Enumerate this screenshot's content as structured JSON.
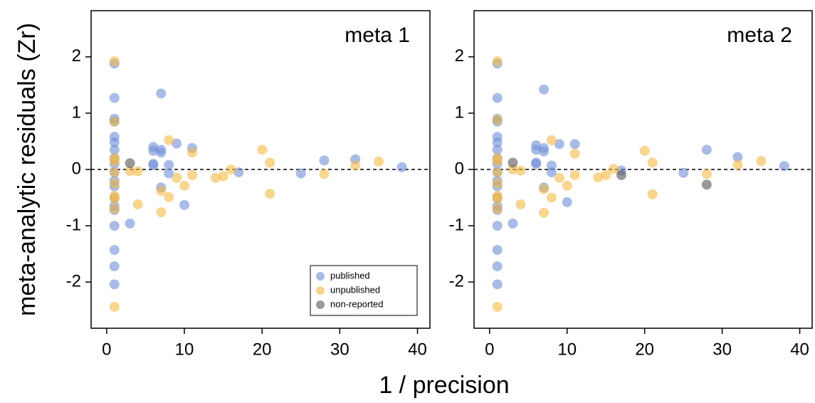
{
  "chart_data": [
    {
      "type": "scatter",
      "title": "meta 1",
      "xlabel": "1 / precision",
      "ylabel": "meta-analytic residuals (Zr)",
      "xlim": [
        -2,
        41.6
      ],
      "ylim": [
        -2.82,
        2.82
      ],
      "xticks": [
        0,
        10,
        20,
        30,
        40
      ],
      "yticks": [
        -2,
        -1,
        0,
        1,
        2
      ],
      "reference_line": 0,
      "legend": "lower right",
      "series": [
        {
          "name": "published",
          "color": "#6f8fd8",
          "x": [
            1,
            1,
            1,
            1,
            1,
            1,
            1,
            1,
            1,
            1,
            1,
            1,
            1,
            1,
            1,
            1,
            1,
            1,
            1,
            3,
            6,
            6,
            6,
            6,
            7,
            7,
            7,
            7,
            8,
            8,
            9,
            10,
            11,
            17,
            25,
            28,
            32,
            38
          ],
          "values": [
            1.88,
            1.27,
            0.9,
            0.85,
            0.58,
            0.48,
            0.35,
            0.2,
            0.1,
            -0.05,
            -0.2,
            -0.3,
            -0.5,
            -0.65,
            -0.72,
            -1.0,
            -1.43,
            -1.72,
            -2.04,
            -0.96,
            0.4,
            0.33,
            0.1,
            0.08,
            1.35,
            0.35,
            0.3,
            -0.32,
            0.08,
            -0.07,
            0.46,
            -0.63,
            0.38,
            -0.05,
            -0.07,
            0.16,
            0.18,
            0.04
          ]
        },
        {
          "name": "unpublished",
          "color": "#f5b942",
          "x": [
            1,
            1,
            1,
            1,
            1,
            1,
            1,
            1,
            1,
            1,
            3,
            4,
            4,
            7,
            7,
            8,
            8,
            9,
            10,
            11,
            11,
            14,
            15,
            16,
            20,
            21,
            21,
            28,
            32,
            35
          ],
          "values": [
            1.92,
            0.85,
            0.2,
            0.15,
            -0.05,
            -0.25,
            -0.47,
            -0.52,
            -0.7,
            -2.44,
            -0.03,
            -0.03,
            -0.62,
            -0.38,
            -0.76,
            0.52,
            -0.49,
            -0.15,
            -0.29,
            0.3,
            -0.1,
            -0.15,
            -0.12,
            0.0,
            0.35,
            0.12,
            -0.43,
            -0.08,
            0.07,
            0.14
          ]
        },
        {
          "name": "non-reported",
          "color": "#555555",
          "x": [
            3
          ],
          "values": [
            0.11
          ]
        }
      ]
    },
    {
      "type": "scatter",
      "title": "meta 2",
      "xlim": [
        -2,
        41.6
      ],
      "ylim": [
        -2.82,
        2.82
      ],
      "xticks": [
        0,
        10,
        20,
        30,
        40
      ],
      "yticks": [
        -2,
        -1,
        0,
        1,
        2
      ],
      "reference_line": 0,
      "series": [
        {
          "color": "#6f8fd8",
          "x": [
            1,
            1,
            1,
            1,
            1,
            1,
            1,
            1,
            1,
            1,
            1,
            1,
            1,
            1,
            1,
            1,
            1,
            1,
            1,
            3,
            6,
            6,
            6,
            6,
            7,
            7,
            7,
            7,
            8,
            8,
            9,
            10,
            11,
            17,
            25,
            28,
            32,
            38
          ],
          "values": [
            1.88,
            1.27,
            0.9,
            0.85,
            0.58,
            0.48,
            0.35,
            0.2,
            0.1,
            -0.05,
            -0.2,
            -0.3,
            -0.5,
            -0.65,
            -0.72,
            -1.0,
            -1.43,
            -1.72,
            -2.04,
            -0.96,
            0.43,
            0.35,
            0.12,
            0.1,
            1.42,
            0.38,
            0.32,
            -0.32,
            0.07,
            -0.05,
            0.45,
            -0.58,
            0.45,
            -0.02,
            -0.06,
            0.35,
            0.22,
            0.06
          ]
        },
        {
          "color": "#f5b942",
          "x": [
            1,
            1,
            1,
            1,
            1,
            1,
            1,
            1,
            1,
            1,
            3,
            4,
            4,
            7,
            7,
            8,
            8,
            9,
            10,
            11,
            11,
            14,
            15,
            16,
            20,
            21,
            21,
            28,
            32,
            35
          ],
          "values": [
            1.92,
            0.88,
            0.2,
            0.15,
            -0.05,
            -0.25,
            -0.47,
            -0.52,
            -0.7,
            -2.44,
            0.0,
            -0.02,
            -0.62,
            -0.35,
            -0.77,
            0.52,
            -0.5,
            -0.15,
            -0.29,
            0.28,
            -0.1,
            -0.14,
            -0.1,
            0.01,
            0.33,
            0.12,
            -0.44,
            -0.08,
            0.08,
            0.15
          ]
        },
        {
          "color": "#555555",
          "x": [
            3,
            17,
            28
          ],
          "values": [
            0.12,
            -0.1,
            -0.27
          ]
        }
      ]
    }
  ]
}
